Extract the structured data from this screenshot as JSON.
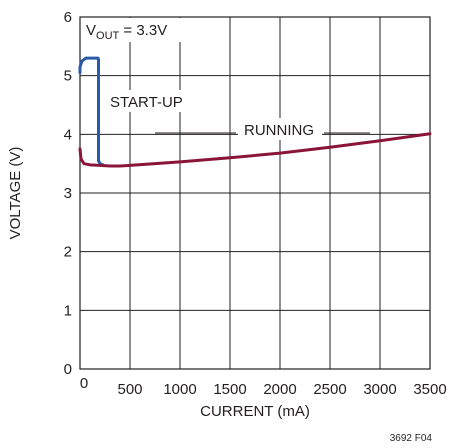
{
  "chart_data": {
    "type": "line",
    "title": "",
    "xlabel": "CURRENT (mA)",
    "ylabel": "VOLTAGE (V)",
    "xlim": [
      0,
      3500
    ],
    "ylim": [
      0,
      6
    ],
    "xticks": [
      500,
      1000,
      1500,
      2000,
      2500,
      3000,
      3500
    ],
    "yticks": [
      0,
      1,
      2,
      3,
      4,
      5,
      6
    ],
    "x_origin_label": "0",
    "grid": true,
    "annotations": {
      "vout_main": "V",
      "vout_sub": "OUT",
      "vout_value": " = 3.3V",
      "startup": "START-UP",
      "running": "RUNNING"
    },
    "figure_id": "3692 F04",
    "series": [
      {
        "name": "START-UP",
        "color": "#2b5ba8",
        "x": [
          0,
          0,
          20,
          60,
          100,
          150,
          180,
          185,
          185,
          200,
          230
        ],
        "y": [
          5.05,
          5.15,
          5.25,
          5.3,
          5.3,
          5.3,
          5.3,
          5.28,
          3.55,
          3.5,
          3.48
        ]
      },
      {
        "name": "RUNNING",
        "color": "#8a1538",
        "x": [
          0,
          10,
          40,
          100,
          200,
          300,
          400,
          500,
          1000,
          1500,
          2000,
          2500,
          3000,
          3500
        ],
        "y": [
          3.75,
          3.58,
          3.5,
          3.48,
          3.47,
          3.46,
          3.46,
          3.47,
          3.53,
          3.6,
          3.68,
          3.78,
          3.89,
          4.01
        ]
      }
    ]
  }
}
